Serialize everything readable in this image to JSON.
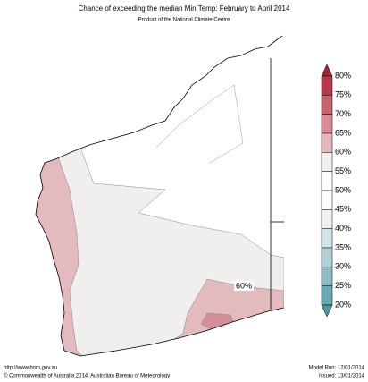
{
  "header": {
    "title": "Chance of exceeding the median Min Temp: February to April 2014",
    "subtitle": "Product of the National Climate Centre"
  },
  "map": {
    "label": "60%",
    "land_color": "#ffffff",
    "grey_color": "#f0efed",
    "pink_color": "#e3babe",
    "dark_pink_color": "#d4909a"
  },
  "colorbar": {
    "labels": [
      "80%",
      "75%",
      "70%",
      "65%",
      "60%",
      "55%",
      "50%",
      "45%",
      "40%",
      "35%",
      "30%",
      "25%",
      "20%"
    ],
    "colors": [
      "#b9374b",
      "#c9626f",
      "#d98c96",
      "#e6b7bc",
      "#f1f0ee",
      "#ffffff",
      "#ffffff",
      "#eef2f2",
      "#d2e4e6",
      "#b2d1d6",
      "#8ebdc5",
      "#6ba8b4"
    ],
    "over_color": "#a2243a",
    "under_color": "#4c97a4"
  },
  "footer": {
    "url": "http://www.bom.gov.au",
    "copyright": "©  Commonwealth of Australia 2014, Australian Bureau of Meteorology",
    "model_run": "Model Run: 12/01/2014",
    "issued": "Issued: 13/01/2014"
  }
}
